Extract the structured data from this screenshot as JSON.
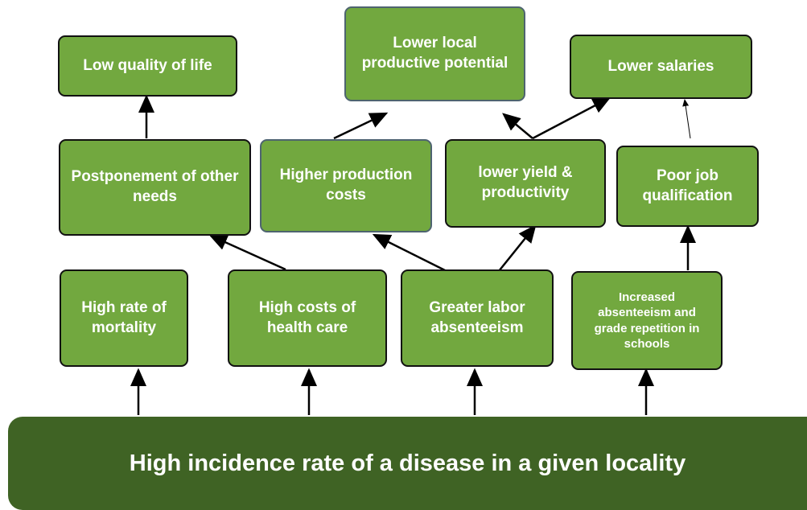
{
  "nodes": [
    {
      "label": "Low quality of life"
    },
    {
      "label": "Lower local productive potential"
    },
    {
      "label": "Lower salaries"
    },
    {
      "label": "Postponement of other needs"
    },
    {
      "label": "Higher production costs"
    },
    {
      "label": "lower yield & productivity"
    },
    {
      "label": "Poor job qualification"
    },
    {
      "label": "High rate of mortality"
    },
    {
      "label": "High costs of health care"
    },
    {
      "label": "Greater labor absenteeism"
    },
    {
      "label": "Increased absenteeism and grade repetition in schools"
    }
  ],
  "base": {
    "label": "High incidence rate of a disease in a given locality"
  }
}
